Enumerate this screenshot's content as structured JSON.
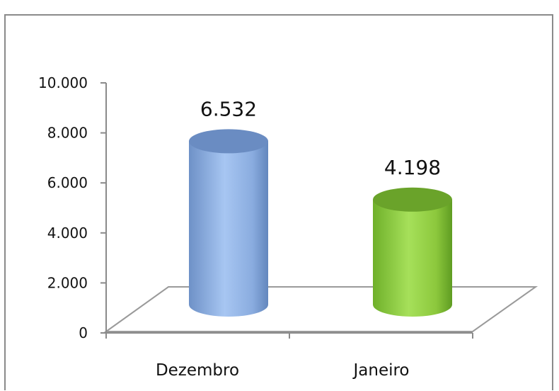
{
  "chart_data": {
    "type": "bar",
    "style": "3d-cylinder",
    "categories": [
      "Dezembro",
      "Janeiro"
    ],
    "values": [
      6532,
      4198
    ],
    "data_labels": [
      "6.532",
      "4.198"
    ],
    "colors": [
      "#8fb1e0",
      "#8fc93f"
    ],
    "ylim": [
      0,
      10000
    ],
    "yticks": [
      0,
      2000,
      4000,
      6000,
      8000,
      10000
    ],
    "ytick_labels": [
      "0",
      "2.000",
      "4.000",
      "6.000",
      "8.000",
      "10.000"
    ],
    "grid": false,
    "legend": "none"
  }
}
